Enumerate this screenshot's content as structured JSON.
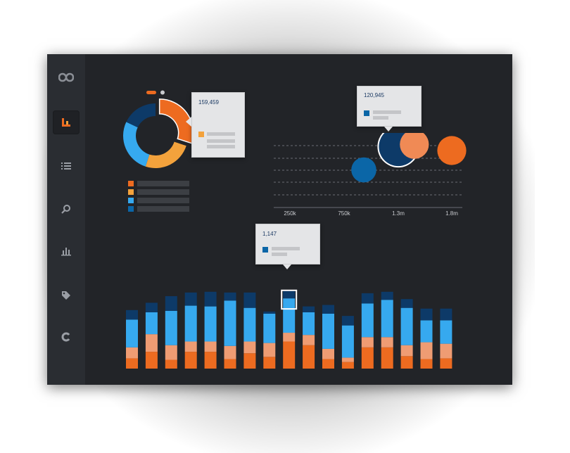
{
  "colors": {
    "navy": "#0d3a68",
    "sky": "#36a9ef",
    "peach": "#ef9c73",
    "orange": "#ed6b20",
    "amber": "#f3a23c",
    "mid_blue": "#0b66a7",
    "bubble_peach": "#f08a55"
  },
  "sidebar": {
    "items": [
      {
        "icon": "infinity-logo-icon"
      },
      {
        "icon": "dashboard-icon",
        "active": true
      },
      {
        "icon": "list-icon"
      },
      {
        "icon": "search-icon"
      },
      {
        "icon": "bar-chart-icon"
      },
      {
        "icon": "tag-icon"
      },
      {
        "icon": "refresh-icon"
      }
    ]
  },
  "donut": {
    "tooltip_value": "159,459",
    "segments": [
      {
        "color": "orange",
        "share": 0.3,
        "exploded": true
      },
      {
        "color": "amber",
        "share": 0.25
      },
      {
        "color": "sky",
        "share": 0.27
      },
      {
        "color": "navy",
        "share": 0.18
      }
    ],
    "legend_colors": [
      "orange",
      "amber",
      "sky",
      "mid_blue"
    ]
  },
  "chart_data": [
    {
      "type": "pie",
      "values": [
        30,
        25,
        27,
        18
      ]
    },
    {
      "type": "scatter",
      "x_ticks": [
        "250k",
        "750k",
        "1.3m",
        "1.8m"
      ],
      "tooltip_value": "120,945",
      "points": [
        {
          "x": 0.95,
          "y": 0.45,
          "size": 0.35,
          "color": "mid_blue"
        },
        {
          "x": 1.3,
          "y": 0.75,
          "size": 0.7,
          "color": "navy",
          "highlighted": true
        },
        {
          "x": 1.45,
          "y": 0.78,
          "size": 0.45,
          "color": "bubble_peach"
        },
        {
          "x": 1.8,
          "y": 0.7,
          "size": 0.45,
          "color": "orange"
        }
      ]
    },
    {
      "type": "bar",
      "tooltip_value": "1,147",
      "highlighted_index": 8,
      "series_colors": [
        "orange",
        "peach",
        "sky",
        "navy"
      ],
      "stacks": [
        [
          28,
          30,
          76,
          26
        ],
        [
          46,
          48,
          60,
          26
        ],
        [
          24,
          40,
          94,
          40
        ],
        [
          46,
          28,
          98,
          36
        ],
        [
          46,
          28,
          96,
          40
        ],
        [
          26,
          36,
          124,
          22
        ],
        [
          42,
          32,
          92,
          42
        ],
        [
          32,
          38,
          80,
          6
        ],
        [
          74,
          24,
          94,
          20
        ],
        [
          64,
          28,
          62,
          16
        ],
        [
          26,
          28,
          96,
          24
        ],
        [
          18,
          12,
          88,
          26
        ],
        [
          58,
          28,
          92,
          28
        ],
        [
          58,
          28,
          102,
          22
        ],
        [
          34,
          30,
          102,
          24
        ],
        [
          26,
          46,
          60,
          32
        ],
        [
          28,
          40,
          64,
          32
        ]
      ]
    }
  ]
}
